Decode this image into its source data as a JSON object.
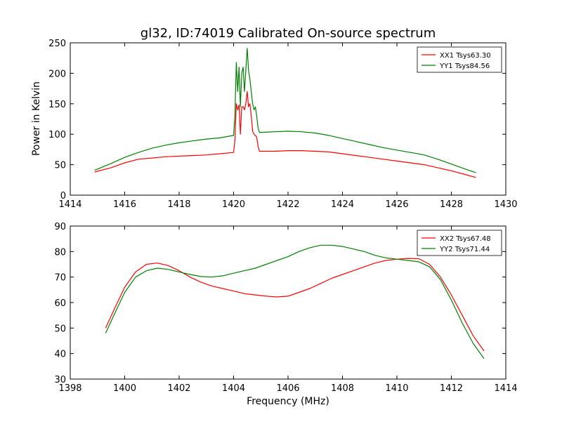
{
  "figure_title": "gl32, ID:74019 Calibrated On-source spectrum",
  "chart_data": [
    {
      "type": "line",
      "title": "gl32, ID:74019 Calibrated On-source spectrum",
      "xlabel": "",
      "ylabel": "Power in Kelvin",
      "xlim": [
        1414,
        1430
      ],
      "ylim": [
        0,
        250
      ],
      "xticks": [
        "1414",
        "1416",
        "1418",
        "1420",
        "1422",
        "1424",
        "1426",
        "1428",
        "1430"
      ],
      "yticks": [
        "0",
        "50",
        "100",
        "150",
        "200",
        "250"
      ],
      "grid": false,
      "legend_position": "top-right",
      "series": [
        {
          "name": "XX1 Tsys63.30",
          "color": "#ff0000",
          "x": [
            1414.9,
            1415.5,
            1416.0,
            1416.5,
            1417.0,
            1417.5,
            1418.0,
            1418.5,
            1419.0,
            1419.5,
            1420.0,
            1420.05,
            1420.1,
            1420.15,
            1420.2,
            1420.25,
            1420.3,
            1420.35,
            1420.4,
            1420.45,
            1420.5,
            1420.55,
            1420.6,
            1420.65,
            1420.7,
            1420.75,
            1420.8,
            1420.85,
            1420.9,
            1420.95,
            1421.0,
            1421.5,
            1422.0,
            1422.5,
            1423.0,
            1423.5,
            1424.0,
            1424.5,
            1425.0,
            1425.5,
            1426.0,
            1426.5,
            1427.0,
            1427.5,
            1428.0,
            1428.5,
            1428.9
          ],
          "values": [
            38,
            45,
            53,
            59,
            61,
            63,
            64,
            65,
            66,
            68,
            70,
            90,
            150,
            140,
            148,
            100,
            145,
            145,
            140,
            150,
            170,
            145,
            150,
            130,
            105,
            100,
            98,
            95,
            80,
            72,
            72,
            72,
            73,
            73,
            72,
            71,
            68,
            65,
            62,
            59,
            56,
            53,
            50,
            45,
            40,
            34,
            29
          ]
        },
        {
          "name": "YY1 Tsys84.56",
          "color": "#008000",
          "x": [
            1414.9,
            1415.5,
            1416.0,
            1416.5,
            1417.0,
            1417.5,
            1418.0,
            1418.5,
            1419.0,
            1419.5,
            1420.0,
            1420.05,
            1420.1,
            1420.15,
            1420.2,
            1420.25,
            1420.3,
            1420.35,
            1420.4,
            1420.45,
            1420.5,
            1420.55,
            1420.6,
            1420.65,
            1420.7,
            1420.75,
            1420.8,
            1420.85,
            1420.9,
            1420.95,
            1421.0,
            1421.5,
            1422.0,
            1422.5,
            1423.0,
            1423.5,
            1424.0,
            1424.5,
            1425.0,
            1425.5,
            1426.0,
            1426.5,
            1427.0,
            1427.5,
            1428.0,
            1428.5,
            1428.9
          ],
          "values": [
            41,
            52,
            62,
            70,
            77,
            82,
            86,
            89,
            92,
            94,
            98,
            130,
            218,
            170,
            210,
            145,
            200,
            210,
            170,
            205,
            241,
            205,
            190,
            170,
            150,
            140,
            145,
            130,
            110,
            103,
            103,
            104,
            105,
            104,
            102,
            98,
            93,
            88,
            83,
            78,
            74,
            70,
            66,
            59,
            51,
            43,
            37
          ]
        }
      ]
    },
    {
      "type": "line",
      "title": "",
      "xlabel": "Frequency (MHz)",
      "ylabel": "",
      "xlim": [
        1398,
        1414
      ],
      "ylim": [
        30,
        90
      ],
      "xticks": [
        "1398",
        "1400",
        "1402",
        "1404",
        "1406",
        "1408",
        "1410",
        "1412",
        "1414"
      ],
      "yticks": [
        "30",
        "40",
        "50",
        "60",
        "70",
        "80",
        "90"
      ],
      "grid": false,
      "legend_position": "top-right",
      "series": [
        {
          "name": "XX2 Tsys67.48",
          "color": "#ff0000",
          "x": [
            1399.3,
            1399.6,
            1400.0,
            1400.4,
            1400.8,
            1401.2,
            1401.6,
            1402.0,
            1402.4,
            1402.8,
            1403.2,
            1403.6,
            1404.0,
            1404.4,
            1404.8,
            1405.2,
            1405.6,
            1406.0,
            1406.4,
            1406.8,
            1407.2,
            1407.6,
            1408.0,
            1408.4,
            1408.8,
            1409.2,
            1409.6,
            1410.0,
            1410.4,
            1410.8,
            1411.2,
            1411.6,
            1412.0,
            1412.4,
            1412.8,
            1413.2
          ],
          "values": [
            50,
            57,
            66,
            72,
            75,
            75.5,
            74.5,
            72.5,
            70,
            68,
            66.5,
            65.5,
            64.5,
            63.5,
            63,
            62.5,
            62.2,
            62.5,
            64,
            65.5,
            67.5,
            69.5,
            71,
            72.5,
            74,
            75.5,
            76.5,
            77,
            77.3,
            77.2,
            75,
            70,
            63,
            55,
            47,
            41
          ]
        },
        {
          "name": "YY2 Tsys71.44",
          "color": "#008000",
          "x": [
            1399.3,
            1399.6,
            1400.0,
            1400.4,
            1400.8,
            1401.2,
            1401.6,
            1402.0,
            1402.4,
            1402.8,
            1403.2,
            1403.6,
            1404.0,
            1404.4,
            1404.8,
            1405.2,
            1405.6,
            1406.0,
            1406.4,
            1406.8,
            1407.2,
            1407.6,
            1408.0,
            1408.4,
            1408.8,
            1409.2,
            1409.6,
            1410.0,
            1410.4,
            1410.8,
            1411.2,
            1411.6,
            1412.0,
            1412.4,
            1412.8,
            1413.2
          ],
          "values": [
            48,
            55,
            64,
            70,
            72.5,
            73.5,
            73,
            72,
            71,
            70.2,
            70,
            70.5,
            71.5,
            72.5,
            73.5,
            75,
            76.5,
            78,
            80,
            81.5,
            82.5,
            82.5,
            82,
            81,
            80,
            78.5,
            77.5,
            77,
            76.5,
            76,
            74,
            69,
            61,
            52,
            44,
            38
          ]
        }
      ]
    }
  ]
}
